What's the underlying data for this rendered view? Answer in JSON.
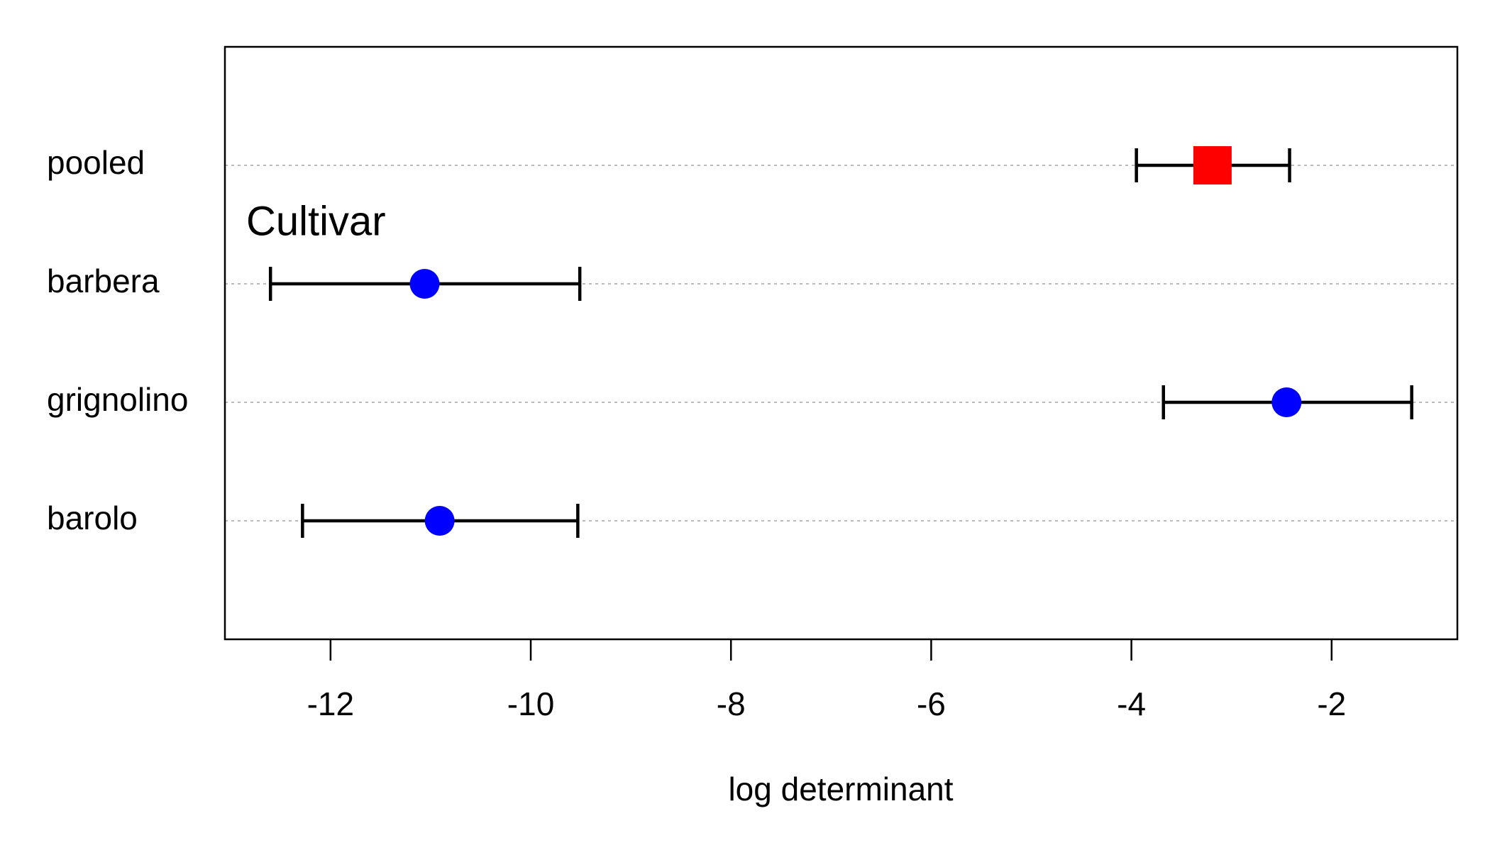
{
  "chart_data": {
    "type": "errorbar-dot",
    "xlabel": "log determinant",
    "annotation": "Cultivar",
    "categories": [
      "pooled",
      "barbera",
      "grignolino",
      "barolo"
    ],
    "values": [
      -3.19,
      -11.06,
      -2.45,
      -10.91
    ],
    "lower": [
      -3.95,
      -12.6,
      -3.68,
      -12.28
    ],
    "upper": [
      -2.42,
      -9.51,
      -1.2,
      -9.53
    ],
    "colors": [
      "#ff0000",
      "#0000ff",
      "#0000ff",
      "#0000ff"
    ],
    "shapes": [
      "square",
      "circle",
      "circle",
      "circle"
    ],
    "xlim": [
      -13.055,
      -0.744
    ],
    "xticks": [
      -12,
      -10,
      -8,
      -6,
      -4,
      -2
    ],
    "grid": true
  }
}
